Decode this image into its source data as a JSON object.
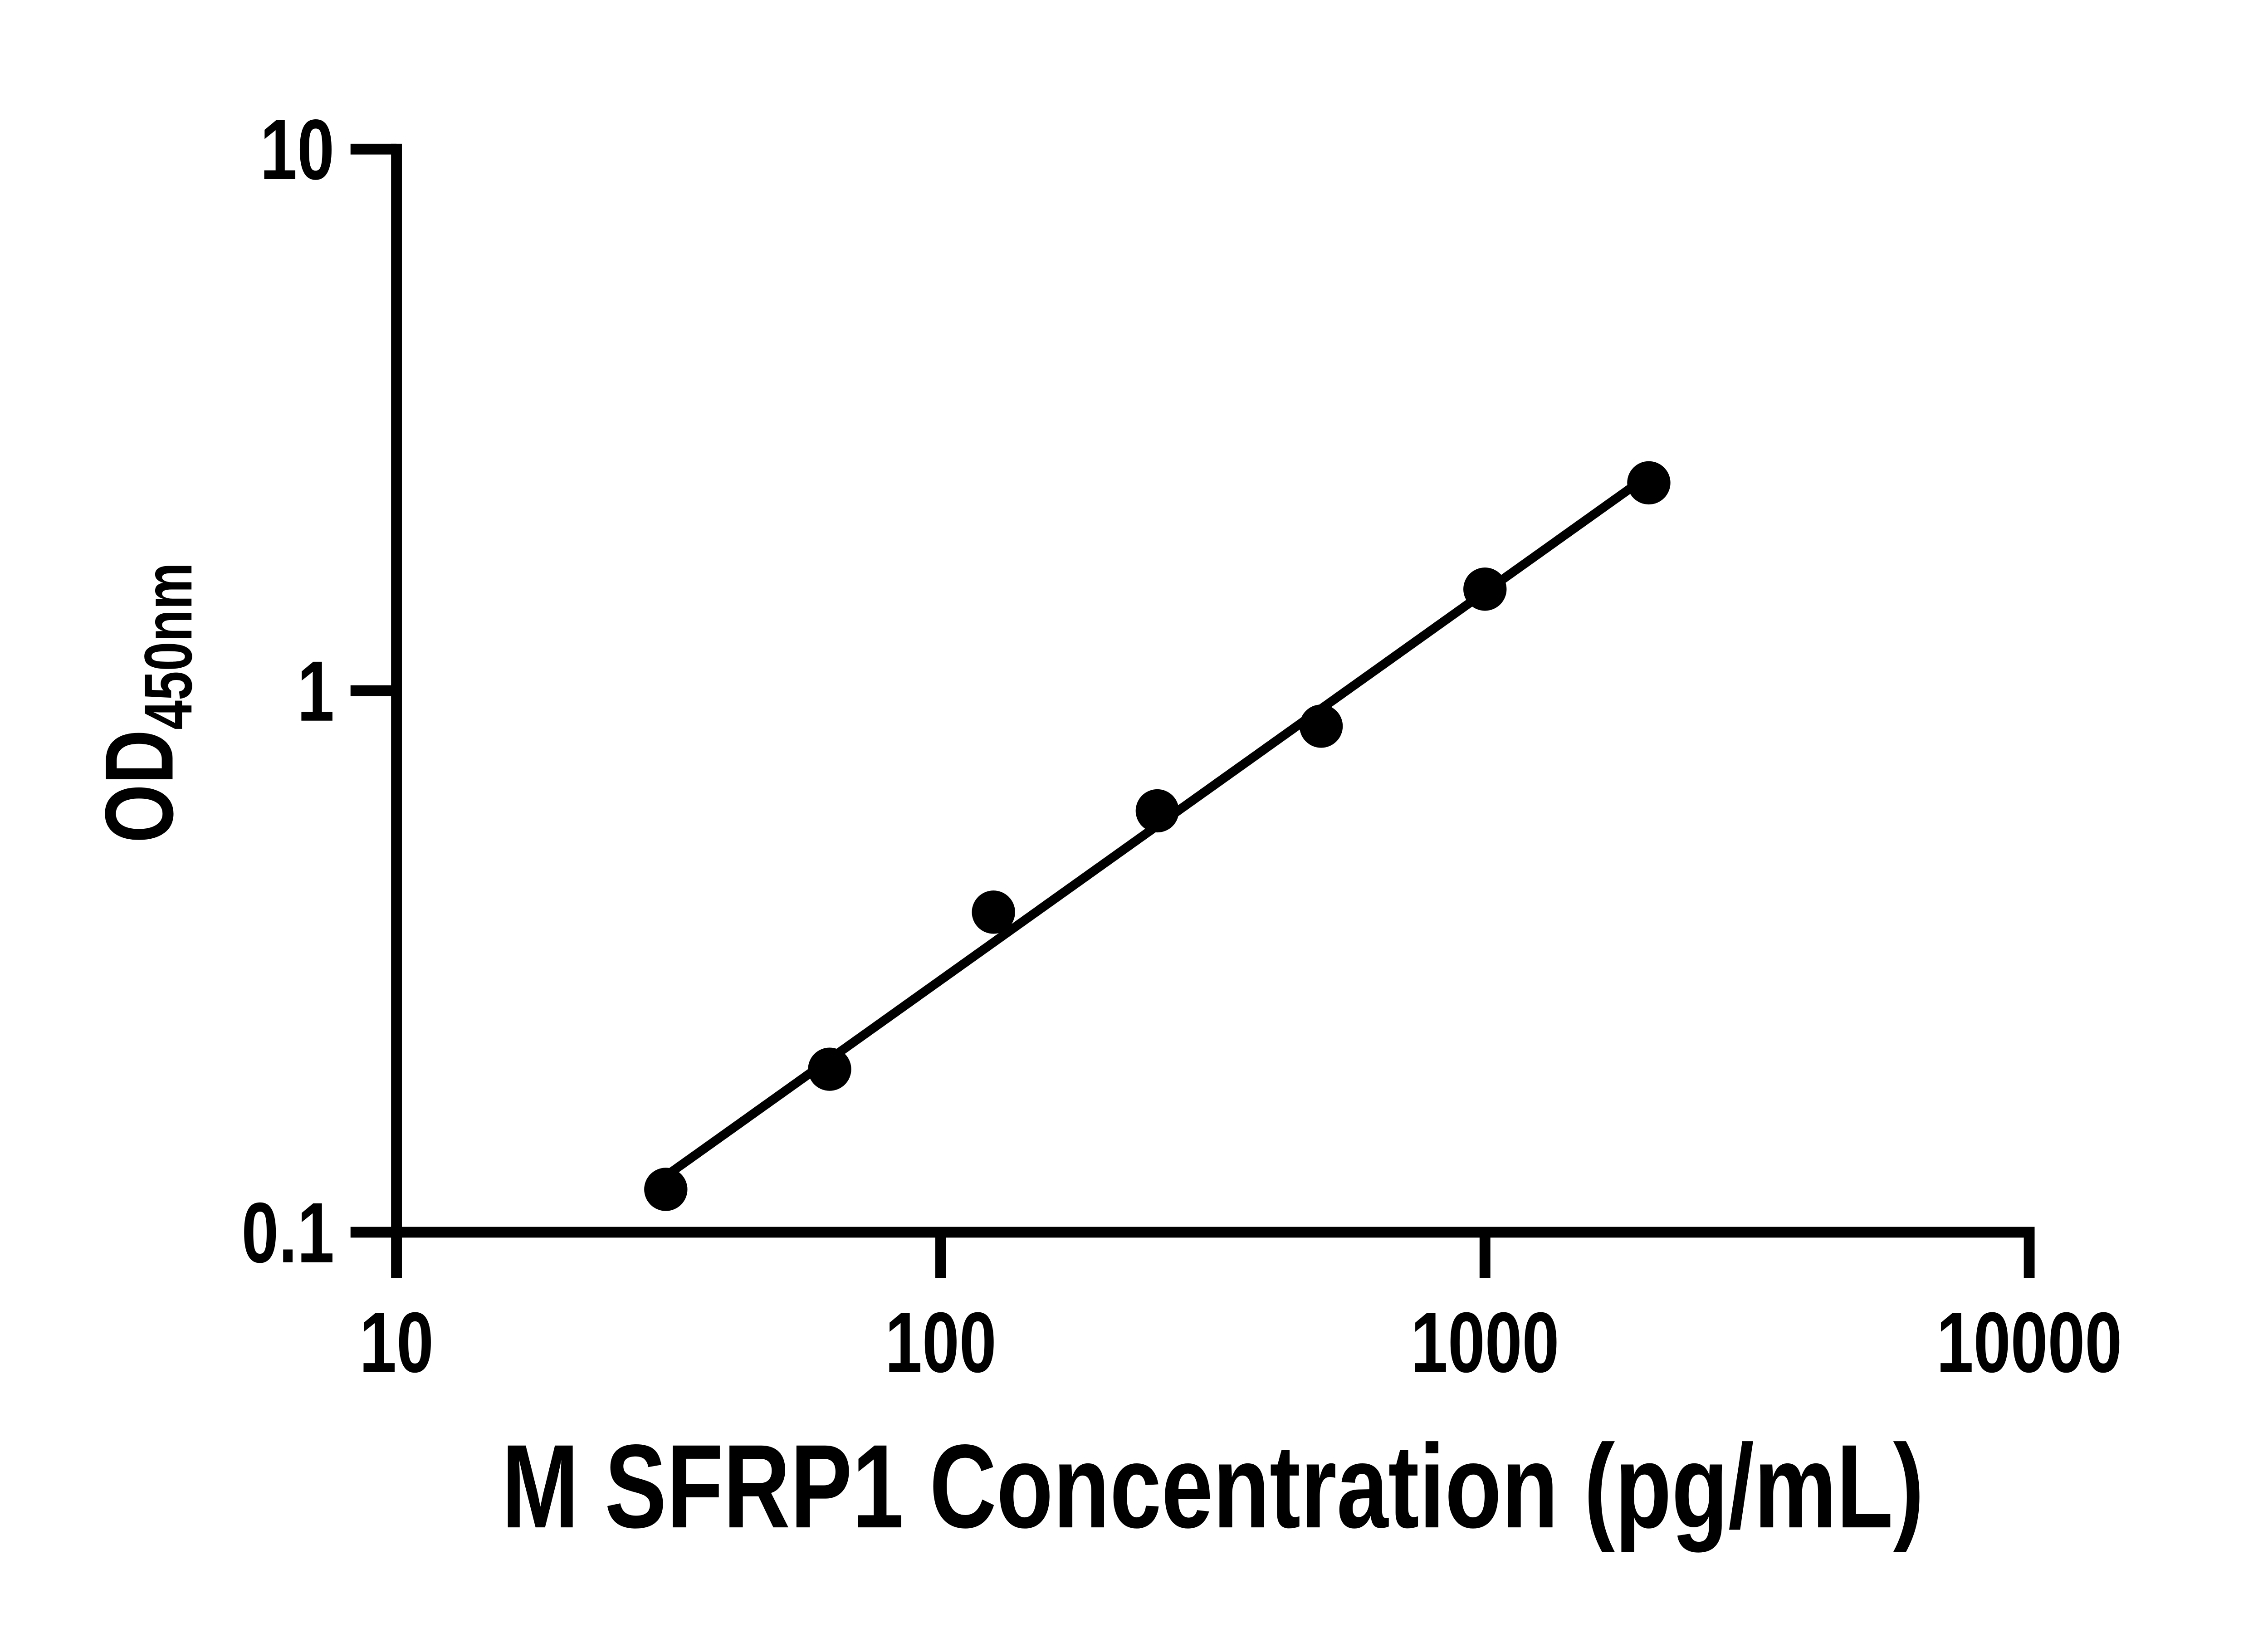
{
  "chart_data": {
    "type": "scatter",
    "title": "",
    "xlabel": "M SFRP1 Concentration (pg/mL)",
    "ylabel_main": "OD",
    "ylabel_sub": "450nm",
    "x_scale": "log",
    "y_scale": "log",
    "xlim": [
      10,
      10000
    ],
    "ylim": [
      0.1,
      10
    ],
    "grid": "off",
    "legend": "none",
    "x_ticks": [
      10,
      100,
      1000,
      10000
    ],
    "x_tick_labels": [
      "10",
      "100",
      "1000",
      "10000"
    ],
    "y_ticks": [
      0.1,
      1,
      10
    ],
    "y_tick_labels": [
      "0.1",
      "1",
      "10"
    ],
    "series": [
      {
        "name": "standard-curve-points",
        "marker": "filled-circle",
        "points": [
          {
            "x": 31.25,
            "od": 0.12
          },
          {
            "x": 62.5,
            "od": 0.2
          },
          {
            "x": 125,
            "od": 0.39
          },
          {
            "x": 250,
            "od": 0.6
          },
          {
            "x": 500,
            "od": 0.86
          },
          {
            "x": 1000,
            "od": 1.54
          },
          {
            "x": 2000,
            "od": 2.42
          }
        ]
      }
    ],
    "trendline": {
      "x1": 31.25,
      "od1": 0.127,
      "x2": 2000,
      "od2": 2.5
    },
    "colors": {
      "foreground": "#000000",
      "background": "#ffffff"
    }
  }
}
